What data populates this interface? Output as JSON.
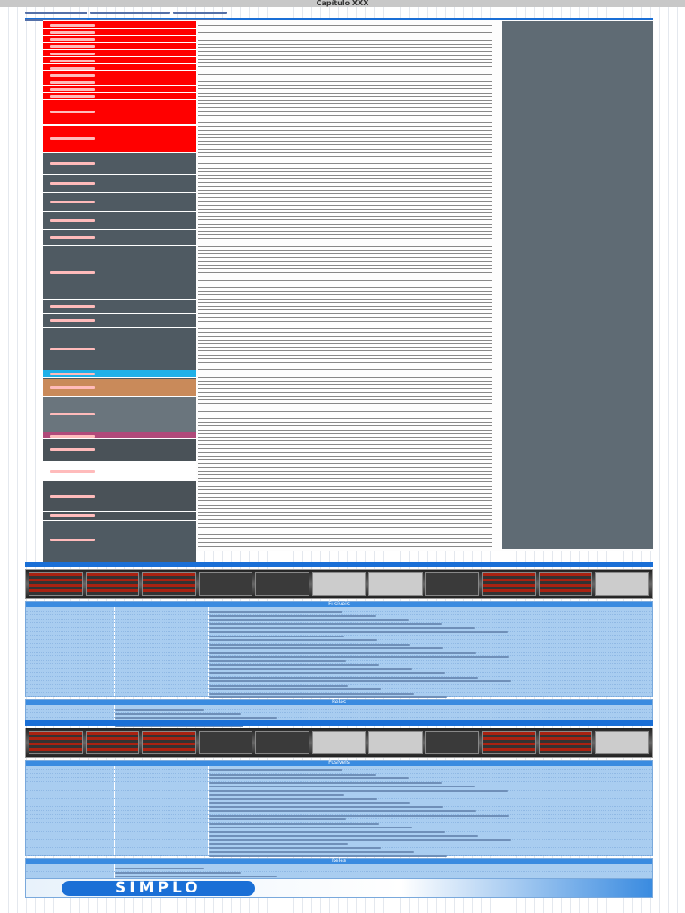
{
  "page": {
    "title": "Capítulo XXX"
  },
  "colors": {
    "accent": "#1a6fd6",
    "relay_box": "#ff0000",
    "module_box": "#4f5a62",
    "panel": "#5f6b74",
    "table": "#a9cdf0"
  },
  "sections": [
    {
      "fuse_header": "Fusíveis",
      "relay_header": "Relés"
    },
    {
      "fuse_header": "Fusíveis",
      "relay_header": "Relés"
    }
  ],
  "logo": {
    "text": "SIMPLO"
  }
}
